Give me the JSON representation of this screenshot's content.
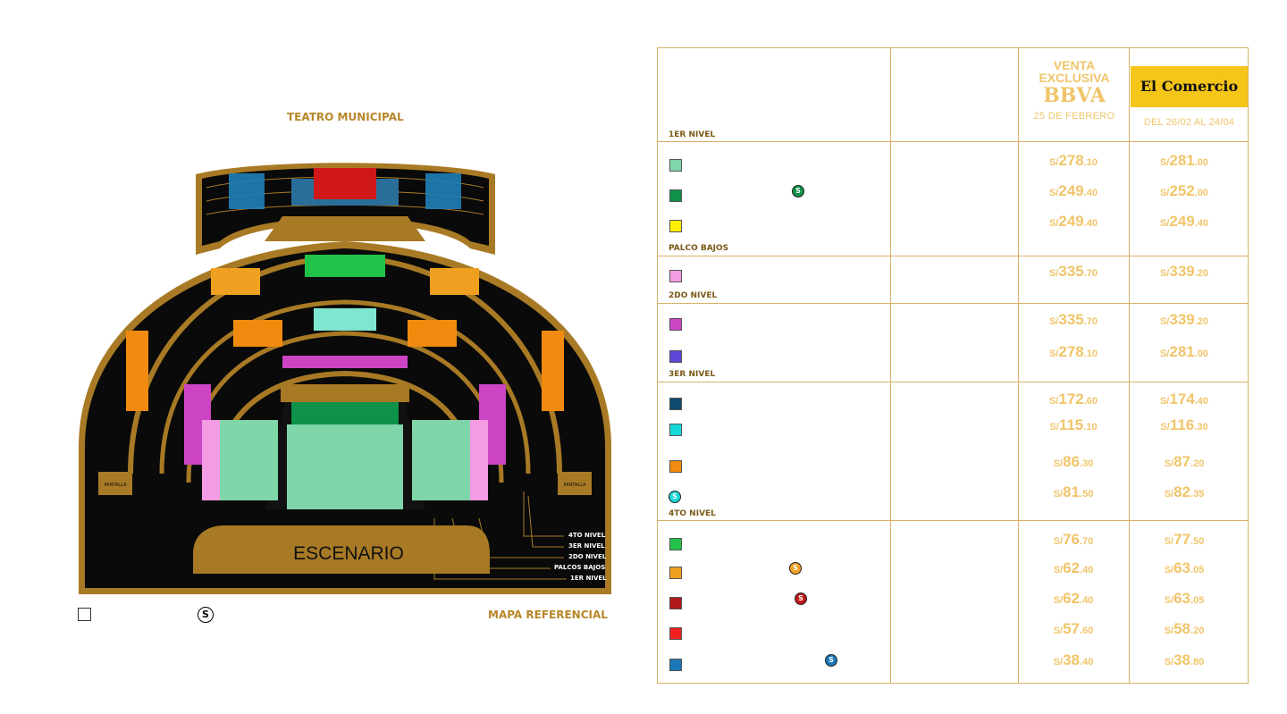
{
  "map": {
    "title": "TEATRO MUNICIPAL",
    "stage_label": "ESCENARIO",
    "pantalla_left": "PANTALLA",
    "pantalla_right": "PANTALLA",
    "level_labels": [
      "4TO NIVEL",
      "3ER NIVEL",
      "2DO NIVEL",
      "PALCOS BAJOS",
      "1ER NIVEL"
    ],
    "reference_label": "MAPA REFERENCIAL",
    "legend_s": "S"
  },
  "table": {
    "bbva_header": {
      "line1": "VENTA",
      "line2": "EXCLUSIVA",
      "brand": "BBVA",
      "date": "25 DE FEBRERO"
    },
    "el_comercio_header": {
      "logo_text": "El Comercio",
      "date": "DEL 26/02 AL 24/04"
    },
    "sections": [
      {
        "label": "1ER NIVEL",
        "rows": [
          {
            "color": "#7fd6a8",
            "bbva": {
              "cur": "S/",
              "main": "278",
              "cents": ".10"
            },
            "ec": {
              "cur": "S/",
              "main": "281",
              "cents": ".00"
            }
          },
          {
            "color": "#0e9148",
            "badge": "S",
            "badge_color": "#0e9148",
            "bbva": {
              "cur": "S/",
              "main": "249",
              "cents": ".40"
            },
            "ec": {
              "cur": "S/",
              "main": "252",
              "cents": ".00"
            }
          },
          {
            "color": "#ffee00",
            "bbva": {
              "cur": "S/",
              "main": "249",
              "cents": ".40"
            },
            "ec": {
              "cur": "S/",
              "main": "249",
              "cents": ".40"
            }
          }
        ]
      },
      {
        "label": "PALCO BAJOS",
        "rows": [
          {
            "color": "#f49be4",
            "bbva": {
              "cur": "S/",
              "main": "335",
              "cents": ".70"
            },
            "ec": {
              "cur": "S/",
              "main": "339",
              "cents": ".20"
            }
          }
        ]
      },
      {
        "label": "2DO NIVEL",
        "rows": [
          {
            "color": "#cc44c4",
            "bbva": {
              "cur": "S/",
              "main": "335",
              "cents": ".70"
            },
            "ec": {
              "cur": "S/",
              "main": "339",
              "cents": ".20"
            }
          },
          {
            "color": "#5d47d6",
            "bbva": {
              "cur": "S/",
              "main": "278",
              "cents": ".10"
            },
            "ec": {
              "cur": "S/",
              "main": "281",
              "cents": ".00"
            }
          }
        ]
      },
      {
        "label": "3ER NIVEL",
        "rows": [
          {
            "color": "#0f4a6e",
            "bbva": {
              "cur": "S/",
              "main": "172",
              "cents": ".60"
            },
            "ec": {
              "cur": "S/",
              "main": "174",
              "cents": ".40"
            }
          },
          {
            "color": "#17d8d8",
            "bbva": {
              "cur": "S/",
              "main": "115",
              "cents": ".10"
            },
            "ec": {
              "cur": "S/",
              "main": "116",
              "cents": ".30"
            }
          },
          {
            "color": "#f28a10",
            "bbva": {
              "cur": "S/",
              "main": "86",
              "cents": ".30"
            },
            "ec": {
              "cur": "S/",
              "main": "87",
              "cents": ".20"
            }
          },
          {
            "badge_only": true,
            "badge": "S",
            "badge_color": "#17d8d8",
            "bbva": {
              "cur": "S/",
              "main": "81",
              "cents": ".50"
            },
            "ec": {
              "cur": "S/",
              "main": "82",
              "cents": ".35"
            }
          }
        ]
      },
      {
        "label": "4TO NIVEL",
        "rows": [
          {
            "color": "#22c24a",
            "bbva": {
              "cur": "S/",
              "main": "76",
              "cents": ".70"
            },
            "ec": {
              "cur": "S/",
              "main": "77",
              "cents": ".50"
            }
          },
          {
            "color": "#f0a020",
            "badge": "S",
            "badge_color": "#f0a020",
            "bbva": {
              "cur": "S/",
              "main": "62",
              "cents": ".40"
            },
            "ec": {
              "cur": "S/",
              "main": "63",
              "cents": ".05"
            }
          },
          {
            "color": "#b0171a",
            "badge": "S",
            "badge_color": "#c0181a",
            "bbva": {
              "cur": "S/",
              "main": "62",
              "cents": ".40"
            },
            "ec": {
              "cur": "S/",
              "main": "63",
              "cents": ".05"
            }
          },
          {
            "color": "#ee2020",
            "bbva": {
              "cur": "S/",
              "main": "57",
              "cents": ".60"
            },
            "ec": {
              "cur": "S/",
              "main": "58",
              "cents": ".20"
            }
          },
          {
            "color": "#1a78b8",
            "badge": "S",
            "badge_color": "#1a78b8",
            "bbva": {
              "cur": "S/",
              "main": "38",
              "cents": ".40"
            },
            "ec": {
              "cur": "S/",
              "main": "38",
              "cents": ".80"
            }
          }
        ]
      }
    ]
  }
}
